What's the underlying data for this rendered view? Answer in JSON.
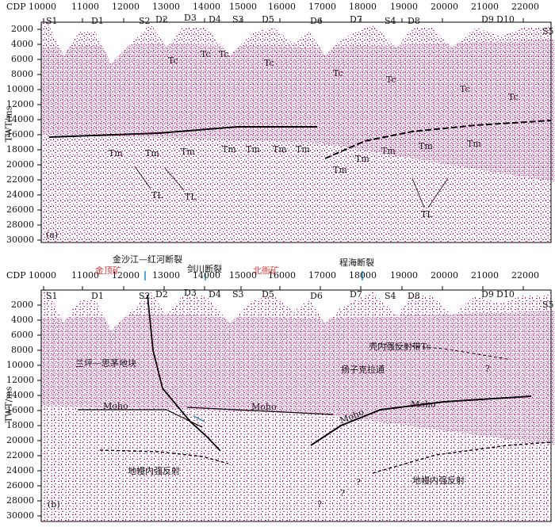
{
  "panel_a": {
    "cdp_label": "CDP",
    "x_ticks": [
      "10000",
      "11000",
      "12000",
      "13000",
      "14000",
      "15000",
      "16000",
      "17000",
      "18000",
      "19000",
      "20000",
      "21000",
      "22000"
    ],
    "y_label": "TWT/ms",
    "y_ticks": [
      "2000",
      "4000",
      "6000",
      "8000",
      "10000",
      "12000",
      "14000",
      "16000",
      "18000",
      "20000",
      "22000",
      "24000",
      "26000",
      "28000",
      "30000"
    ],
    "stations": [
      "S1",
      "D1",
      "S2",
      "D2",
      "D3",
      "D4",
      "S3",
      "D5",
      "D6",
      "D7",
      "S4",
      "D8",
      "D9",
      "D10",
      "S5"
    ],
    "panel_letter": "(a)",
    "tc_labels": [
      "Tc",
      "Tc",
      "Tc",
      "Tc",
      "Tc",
      "Tc",
      "Tc",
      "Tc"
    ],
    "tm_labels": [
      "Tm",
      "Tm",
      "Tm",
      "Tm",
      "Tm",
      "Tm",
      "Tm",
      "Tm",
      "Tm",
      "Tm",
      "Tm",
      "Tm",
      "Tm"
    ],
    "tl_labels": [
      "TL",
      "TL",
      "TL"
    ]
  },
  "panel_b": {
    "cdp_label": "CDP",
    "x_ticks": [
      "10000",
      "11000",
      "12000",
      "13000",
      "14000",
      "15000",
      "16000",
      "17000",
      "18000",
      "19000",
      "20000",
      "21000",
      "22000"
    ],
    "y_label": "TWT/ms",
    "y_ticks": [
      "2000",
      "4000",
      "6000",
      "8000",
      "10000",
      "12000",
      "14000",
      "16000",
      "18000",
      "20000",
      "22000",
      "24000",
      "26000",
      "28000",
      "30000"
    ],
    "stations": [
      "S1",
      "D1",
      "S2",
      "D2",
      "D3",
      "D4",
      "S3",
      "D5",
      "D6",
      "D7",
      "S4",
      "D8",
      "D9",
      "D10",
      "S5"
    ],
    "panel_letter": "(b)",
    "fault_labels": {
      "jinshajiang": "金沙江—红河断裂",
      "jianchuan": "剑川断裂",
      "chenghai": "程海断裂"
    },
    "mine_labels": {
      "jinding": "金顶矿",
      "beiya": "北衙矿"
    },
    "region_labels": {
      "left_block": "兰坪—思茅地块",
      "right_block": "扬子克拉通",
      "crust_reflector": "壳内强反射带Tc",
      "mantle_left": "地幔内强反射",
      "mantle_right": "地幔内强反射"
    },
    "moho_labels": [
      "Moho",
      "Moho",
      "Moho",
      "Moho"
    ],
    "question_marks": [
      "?",
      "?",
      "?",
      "?"
    ]
  },
  "colors": {
    "seismic": "#c0178f",
    "fault_marker": "#1a90c8",
    "mine": "#e23b3b",
    "lines": "#000000"
  }
}
